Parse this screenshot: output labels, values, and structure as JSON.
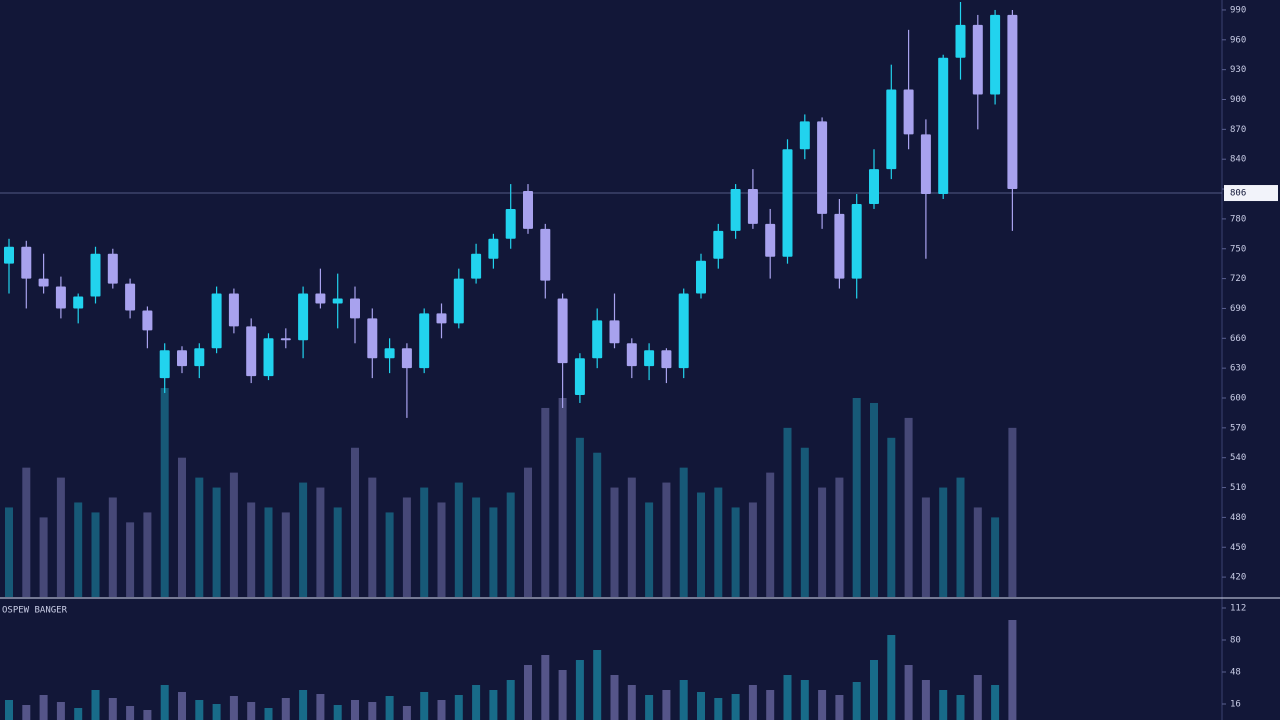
{
  "chart_data": {
    "type": "candlestick",
    "up_color": "#22d3ee",
    "down_color": "#a8a2ee",
    "open": [
      735,
      752,
      720,
      712,
      690,
      702,
      745,
      715,
      688,
      620,
      648,
      632,
      650,
      705,
      672,
      622,
      660,
      658,
      705,
      695,
      700,
      680,
      640,
      650,
      630,
      685,
      675,
      720,
      740,
      760,
      808,
      770,
      700,
      603,
      640,
      678,
      655,
      632,
      648,
      630,
      705,
      740,
      768,
      810,
      775,
      742,
      850,
      878,
      785,
      720,
      795,
      830,
      910,
      865,
      805,
      942,
      975,
      905,
      985
    ],
    "high": [
      760,
      758,
      745,
      722,
      705,
      752,
      750,
      720,
      692,
      655,
      652,
      655,
      712,
      710,
      680,
      665,
      670,
      712,
      730,
      725,
      712,
      690,
      660,
      655,
      690,
      695,
      730,
      755,
      765,
      815,
      815,
      775,
      705,
      645,
      690,
      705,
      660,
      655,
      650,
      710,
      745,
      775,
      815,
      830,
      790,
      860,
      885,
      882,
      800,
      805,
      850,
      935,
      970,
      880,
      945,
      998,
      985,
      990,
      990
    ],
    "low": [
      705,
      690,
      705,
      680,
      675,
      695,
      710,
      680,
      650,
      605,
      625,
      620,
      645,
      665,
      615,
      618,
      650,
      640,
      690,
      670,
      655,
      620,
      625,
      580,
      625,
      660,
      670,
      715,
      730,
      750,
      765,
      700,
      590,
      595,
      630,
      650,
      620,
      618,
      615,
      620,
      700,
      730,
      760,
      770,
      720,
      735,
      840,
      770,
      710,
      700,
      790,
      820,
      850,
      740,
      800,
      920,
      870,
      895,
      768
    ],
    "close": [
      752,
      720,
      712,
      690,
      702,
      745,
      715,
      688,
      668,
      648,
      632,
      650,
      705,
      672,
      622,
      660,
      658,
      705,
      695,
      700,
      680,
      640,
      650,
      630,
      685,
      675,
      720,
      745,
      760,
      790,
      770,
      718,
      635,
      640,
      678,
      655,
      632,
      648,
      630,
      705,
      738,
      768,
      810,
      775,
      742,
      850,
      878,
      785,
      720,
      795,
      830,
      910,
      865,
      805,
      942,
      975,
      905,
      985,
      810
    ],
    "ylim": [
      400,
      1000
    ],
    "yticks": [
      990,
      960,
      930,
      900,
      870,
      840,
      810,
      780,
      750,
      720,
      690,
      660,
      630,
      600,
      570,
      540,
      510,
      480,
      450,
      420
    ],
    "crosshair": 806,
    "grid": false,
    "volume": [
      90,
      130,
      80,
      120,
      95,
      85,
      100,
      75,
      85,
      210,
      140,
      120,
      110,
      125,
      95,
      90,
      85,
      115,
      110,
      90,
      150,
      120,
      85,
      100,
      110,
      95,
      115,
      100,
      90,
      105,
      130,
      190,
      200,
      160,
      145,
      110,
      120,
      95,
      115,
      130,
      105,
      110,
      90,
      95,
      125,
      170,
      150,
      110,
      120,
      200,
      195,
      160,
      180,
      100,
      110,
      120,
      90,
      80,
      170
    ],
    "volume_ylim": [
      0,
      600
    ],
    "indicator": {
      "title": "OSPEW BANGER",
      "values": [
        20,
        15,
        25,
        18,
        12,
        30,
        22,
        14,
        10,
        35,
        28,
        20,
        16,
        24,
        18,
        12,
        22,
        30,
        26,
        15,
        20,
        18,
        24,
        14,
        28,
        20,
        25,
        35,
        30,
        40,
        55,
        65,
        50,
        60,
        70,
        45,
        35,
        25,
        30,
        40,
        28,
        22,
        26,
        35,
        30,
        45,
        40,
        30,
        25,
        38,
        60,
        85,
        55,
        40,
        30,
        25,
        45,
        35,
        100
      ],
      "ylim": [
        0,
        120
      ],
      "yticks": [
        112,
        80,
        48,
        16
      ]
    }
  }
}
